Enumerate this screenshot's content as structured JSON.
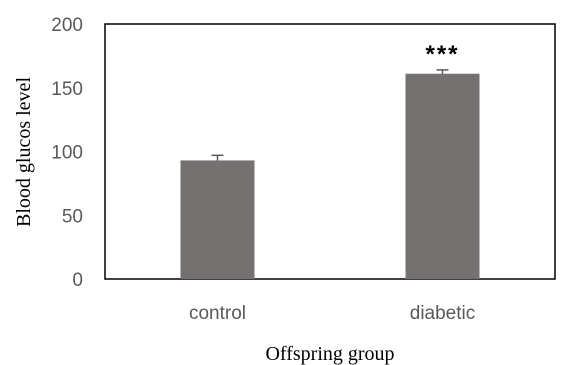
{
  "chart_data": {
    "type": "bar",
    "categories": [
      "control",
      "diabetic"
    ],
    "values": [
      93,
      161
    ],
    "errors": [
      4,
      3
    ],
    "annotations": [
      "",
      "***"
    ],
    "xlabel": "Offspring group",
    "ylabel": "Blood glucos level",
    "ylim": [
      0,
      200
    ],
    "yticks": [
      0,
      50,
      100,
      150,
      200
    ],
    "grid": false,
    "bar_color": "#767171"
  }
}
